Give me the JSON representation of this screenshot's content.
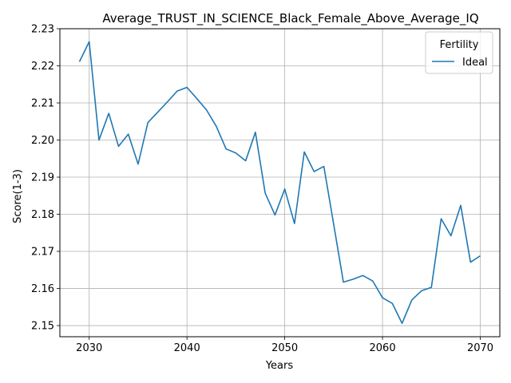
{
  "chart_data": {
    "type": "line",
    "title": "Average_TRUST_IN_SCIENCE_Black_Female_Above_Average_IQ",
    "xlabel": "Years",
    "ylabel": "Score(1-3)",
    "xlim": [
      2027,
      2072
    ],
    "ylim": [
      2.147,
      2.23
    ],
    "xticks": [
      2030,
      2040,
      2050,
      2060,
      2070
    ],
    "yticks": [
      2.15,
      2.16,
      2.17,
      2.18,
      2.19,
      2.2,
      2.21,
      2.22,
      2.23
    ],
    "ytick_labels": [
      "2.15",
      "2.16",
      "2.17",
      "2.18",
      "2.19",
      "2.20",
      "2.21",
      "2.22",
      "2.23"
    ],
    "grid": true,
    "legend": {
      "title": "Fertility",
      "placement": "top-right"
    },
    "series": [
      {
        "name": "Ideal",
        "color": "#1f77b4",
        "x": [
          2029,
          2030,
          2031,
          2032,
          2033,
          2034,
          2035,
          2036,
          2037,
          2038,
          2039,
          2040,
          2041,
          2042,
          2043,
          2044,
          2045,
          2046,
          2047,
          2048,
          2049,
          2050,
          2051,
          2052,
          2053,
          2054,
          2055,
          2056,
          2057,
          2058,
          2059,
          2060,
          2061,
          2062,
          2063,
          2064,
          2065,
          2066,
          2067,
          2068,
          2069,
          2070
        ],
        "y": [
          2.2211,
          2.2265,
          2.2,
          2.2072,
          2.1983,
          2.2016,
          2.1935,
          2.2047,
          2.2075,
          2.2103,
          2.2132,
          2.2142,
          2.2112,
          2.2081,
          2.2037,
          2.1976,
          2.1965,
          2.1944,
          2.2021,
          2.1857,
          2.1798,
          2.1868,
          2.1775,
          2.1968,
          2.1915,
          2.1929,
          2.1774,
          2.1617,
          2.1625,
          2.1635,
          2.162,
          2.1575,
          2.156,
          2.1506,
          2.1569,
          2.1594,
          2.1603,
          2.1788,
          2.1742,
          2.1824,
          2.1671,
          2.1688
        ]
      }
    ]
  }
}
